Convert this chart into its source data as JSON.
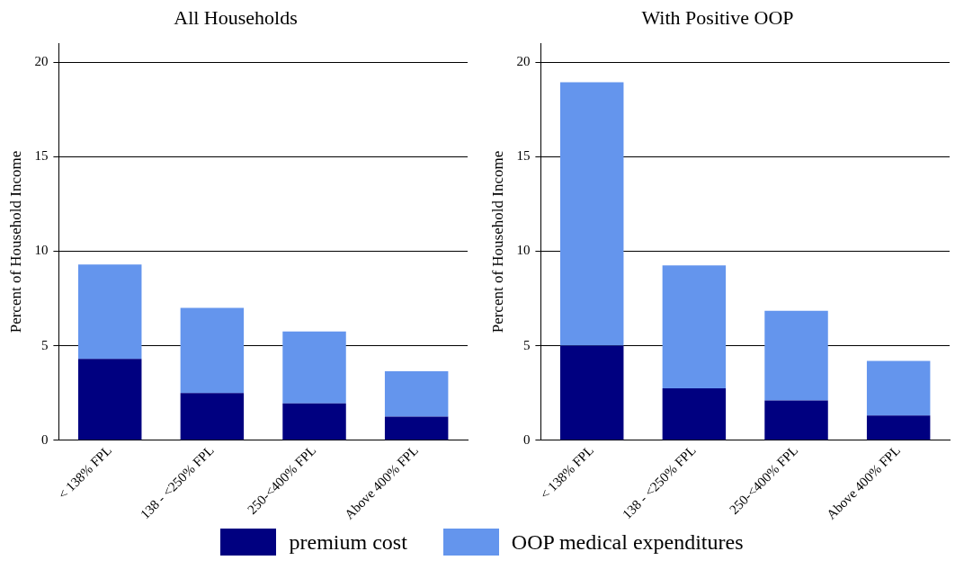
{
  "chart_data": [
    {
      "type": "bar",
      "title": "All Households",
      "ylabel": "Percent of Household Income",
      "categories": [
        "< 138% FPL",
        "138 - <250% FPL",
        "250-<400% FPL",
        "Above 400% FPL"
      ],
      "stacked": true,
      "series": [
        {
          "name": "premium cost",
          "color": "#000080",
          "values": [
            4.3,
            2.5,
            1.95,
            1.25
          ]
        },
        {
          "name": "OOP medical expenditures",
          "color": "#6495ed",
          "values": [
            5.0,
            4.5,
            3.8,
            2.4
          ]
        }
      ],
      "ylim": [
        0,
        21
      ],
      "yticks": [
        0,
        5,
        10,
        15,
        20
      ],
      "grid": "y",
      "legend": "bottom"
    },
    {
      "type": "bar",
      "title": "With Positive OOP",
      "ylabel": "Percent of Household Income",
      "categories": [
        "< 138% FPL",
        "138 - <250% FPL",
        "250-<400% FPL",
        "Above 400% FPL"
      ],
      "stacked": true,
      "series": [
        {
          "name": "premium cost",
          "color": "#000080",
          "values": [
            5.0,
            2.75,
            2.1,
            1.3
          ]
        },
        {
          "name": "OOP medical expenditures",
          "color": "#6495ed",
          "values": [
            13.95,
            6.5,
            4.75,
            2.9
          ]
        }
      ],
      "ylim": [
        0,
        21
      ],
      "yticks": [
        0,
        5,
        10,
        15,
        20
      ],
      "grid": "y",
      "legend": "bottom"
    }
  ]
}
